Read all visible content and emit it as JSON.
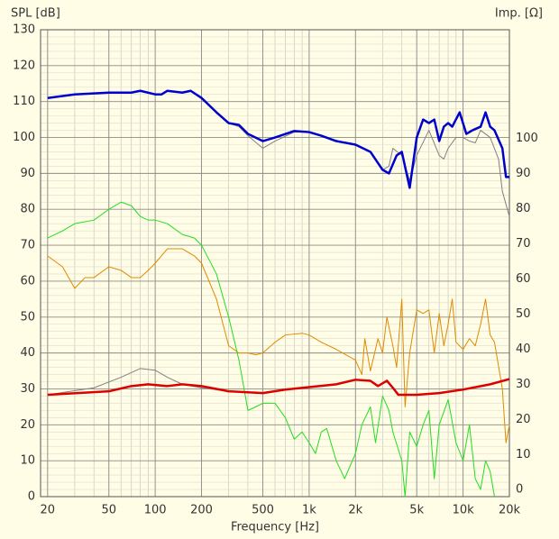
{
  "chart_data": {
    "type": "line",
    "y_label": "SPL [dB]",
    "y2_label": "Imp. [Ω]",
    "x_label": "Frequency [Hz]",
    "x_log": true,
    "grid": true,
    "minor_grid": true,
    "xlim": [
      18,
      20000
    ],
    "ylim": [
      0,
      130
    ],
    "y2lim": [
      -2,
      131
    ],
    "xticks": [
      20,
      50,
      100,
      200,
      500,
      {
        "value": 1000,
        "label": "1k"
      },
      {
        "value": 2000,
        "label": "2k"
      },
      {
        "value": 5000,
        "label": "5k"
      },
      {
        "value": 10000,
        "label": "10k"
      },
      {
        "value": 20000,
        "label": "20k"
      }
    ],
    "yticks": [
      0,
      10,
      20,
      30,
      40,
      50,
      60,
      70,
      80,
      90,
      100,
      110,
      120,
      130
    ],
    "y2ticks": [
      0,
      10,
      20,
      30,
      40,
      50,
      60,
      70,
      80,
      90,
      100
    ],
    "series": [
      {
        "color": "#808080",
        "width": 1,
        "x": [
          20,
          30,
          50,
          70,
          80,
          100,
          110,
          120,
          150,
          170,
          200,
          250,
          300,
          350,
          400,
          500,
          600,
          800,
          1000,
          1200,
          1500,
          2000,
          2500,
          3000,
          3300,
          3500,
          4000,
          4500,
          5000,
          6000,
          7000,
          7500,
          8000,
          9000,
          10000,
          11000,
          12000,
          13000,
          15000,
          17000,
          18000,
          20000
        ],
        "values": [
          111,
          112,
          112.5,
          112.5,
          113,
          112,
          112,
          113,
          112.5,
          113,
          111,
          107,
          104,
          103,
          100.5,
          97,
          99,
          101.5,
          101.5,
          100.5,
          99,
          98,
          96,
          91,
          92,
          97,
          95,
          88,
          95,
          102,
          95,
          94,
          97,
          100,
          100,
          99,
          98.5,
          102,
          100,
          94,
          85,
          78
        ]
      },
      {
        "color": "#0000cc",
        "width": 2.5,
        "x": [
          20,
          30,
          50,
          70,
          80,
          100,
          110,
          120,
          150,
          170,
          200,
          250,
          300,
          350,
          400,
          500,
          600,
          800,
          1000,
          1200,
          1500,
          2000,
          2500,
          3000,
          3300,
          3700,
          4000,
          4500,
          5000,
          5500,
          6000,
          6500,
          7000,
          7500,
          8000,
          8500,
          9500,
          10500,
          11500,
          13000,
          14000,
          15000,
          16000,
          18000,
          19000,
          20000
        ],
        "values": [
          111,
          112,
          112.5,
          112.5,
          113,
          112,
          112,
          113,
          112.5,
          113,
          111,
          107,
          104,
          103.5,
          101,
          99,
          100,
          101.8,
          101.5,
          100.5,
          99,
          98,
          96,
          91,
          90,
          95,
          96,
          86,
          100,
          105,
          104,
          105,
          99,
          103,
          104,
          103,
          107,
          101,
          102,
          103,
          107,
          103,
          102,
          97,
          89,
          89
        ]
      },
      {
        "color": "#22dd22",
        "width": 1,
        "x": [
          20,
          25,
          30,
          40,
          50,
          60,
          70,
          80,
          90,
          100,
          120,
          150,
          180,
          200,
          250,
          300,
          350,
          400,
          450,
          500,
          600,
          700,
          800,
          900,
          1000,
          1100,
          1200,
          1300,
          1500,
          1700,
          2000,
          2200,
          2500,
          2700,
          3000,
          3300,
          3500,
          4000,
          4200,
          4500,
          5000,
          5500,
          6000,
          6500,
          7000,
          8000,
          9000,
          10000,
          11000,
          12000,
          13000,
          14000,
          15000,
          16000
        ],
        "values": [
          72,
          74,
          76,
          77,
          80,
          82,
          81,
          78,
          77,
          77,
          76,
          73,
          72,
          70,
          62,
          50,
          38,
          24,
          25,
          26,
          26,
          22,
          16,
          18,
          15,
          12,
          18,
          19,
          10,
          5,
          12,
          20,
          25,
          15,
          28,
          24,
          18,
          10,
          0,
          18,
          14,
          20,
          24,
          5,
          20,
          27,
          15,
          10,
          20,
          5,
          2,
          10,
          7,
          0
        ]
      },
      {
        "color": "#e08a00",
        "width": 1,
        "x": [
          20,
          25,
          30,
          35,
          40,
          50,
          60,
          70,
          80,
          90,
          100,
          120,
          150,
          180,
          200,
          250,
          300,
          350,
          400,
          450,
          500,
          600,
          700,
          900,
          1000,
          1200,
          1500,
          2000,
          2200,
          2300,
          2500,
          2800,
          3000,
          3200,
          3500,
          3700,
          4000,
          4200,
          4500,
          5000,
          5500,
          6000,
          6500,
          7000,
          7500,
          8000,
          8500,
          9000,
          10000,
          11000,
          12000,
          13000,
          14000,
          15000,
          16000,
          18000,
          19000,
          20000
        ],
        "values": [
          67,
          64,
          58,
          61,
          61,
          64,
          63,
          61,
          61,
          63,
          65,
          69,
          69,
          67,
          65,
          55,
          42,
          40,
          40,
          39.5,
          40,
          43,
          45,
          45.5,
          45,
          43,
          41,
          38,
          34,
          44,
          35,
          44,
          40,
          50,
          42,
          36,
          55,
          25,
          40,
          52,
          51,
          52,
          40,
          51,
          42,
          48,
          55,
          43,
          41,
          44,
          42,
          48,
          55,
          45,
          43,
          30,
          15,
          20
        ]
      },
      {
        "color": "#808080",
        "width": 1,
        "axis": "y2",
        "x": [
          20,
          40,
          60,
          80,
          100,
          120,
          150,
          200,
          300,
          500
        ],
        "values": [
          27,
          29,
          32,
          34.5,
          34,
          32,
          30,
          29,
          28,
          27.5
        ]
      },
      {
        "color": "#dd0000",
        "width": 2.5,
        "axis": "y2",
        "x": [
          20,
          50,
          70,
          90,
          120,
          150,
          200,
          300,
          500,
          700,
          1000,
          1500,
          2000,
          2500,
          2800,
          3200,
          3500,
          3800,
          5000,
          7000,
          10000,
          15000,
          20000
        ],
        "values": [
          27,
          28,
          29.5,
          30,
          29.5,
          30,
          29.5,
          28,
          27.5,
          28.5,
          29.2,
          30,
          31.3,
          31,
          29.5,
          31,
          29,
          27,
          27,
          27.5,
          28.5,
          30,
          31.5
        ]
      }
    ]
  }
}
